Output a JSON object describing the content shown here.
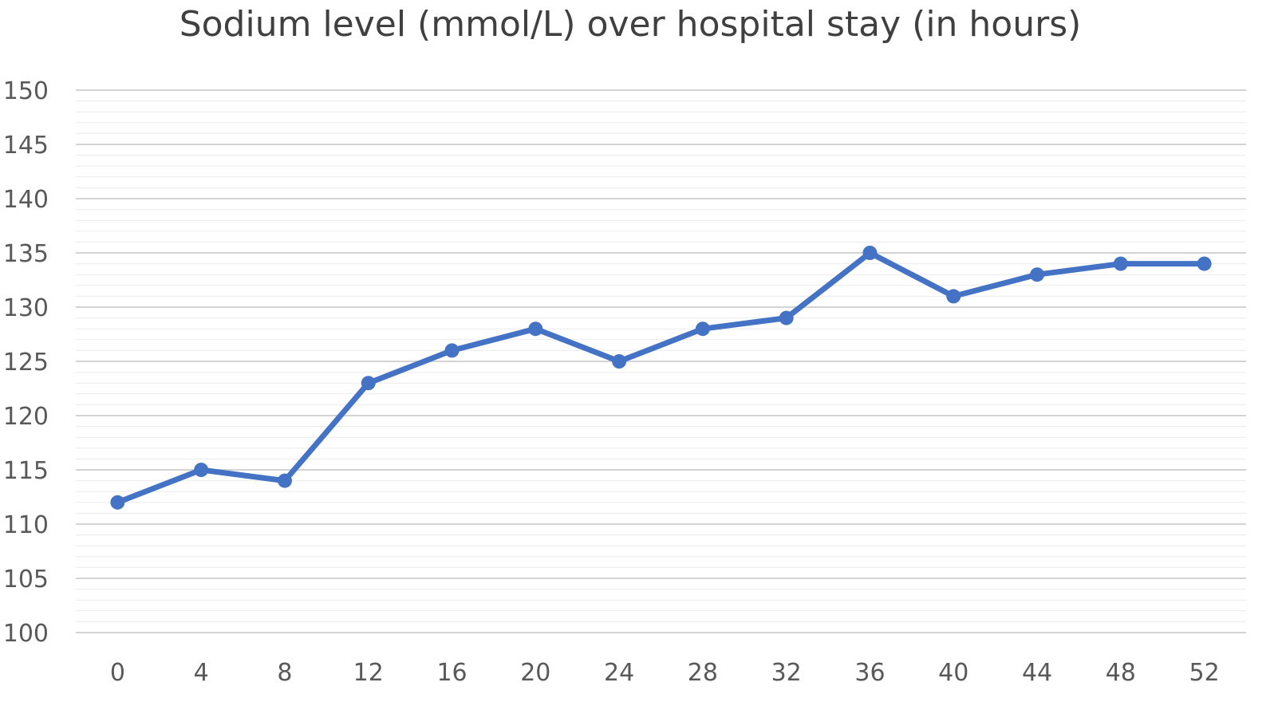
{
  "chart_data": {
    "type": "line",
    "title": "Sodium level (mmol/L) over hospital stay (in hours)",
    "xlabel": "",
    "ylabel": "",
    "categories": [
      "0",
      "4",
      "8",
      "12",
      "16",
      "20",
      "24",
      "28",
      "32",
      "36",
      "40",
      "44",
      "48",
      "52"
    ],
    "series": [
      {
        "values": [
          112,
          115,
          114,
          123,
          126,
          128,
          125,
          128,
          129,
          135,
          131,
          133,
          134,
          134
        ],
        "color": "#4472C4",
        "marker": "circle"
      }
    ],
    "ylim": [
      100,
      150
    ],
    "yticks": [
      "100",
      "105",
      "110",
      "115",
      "120",
      "125",
      "130",
      "135",
      "140",
      "145",
      "150"
    ],
    "major_grid": true,
    "minor_grid": true,
    "legend": "none"
  }
}
